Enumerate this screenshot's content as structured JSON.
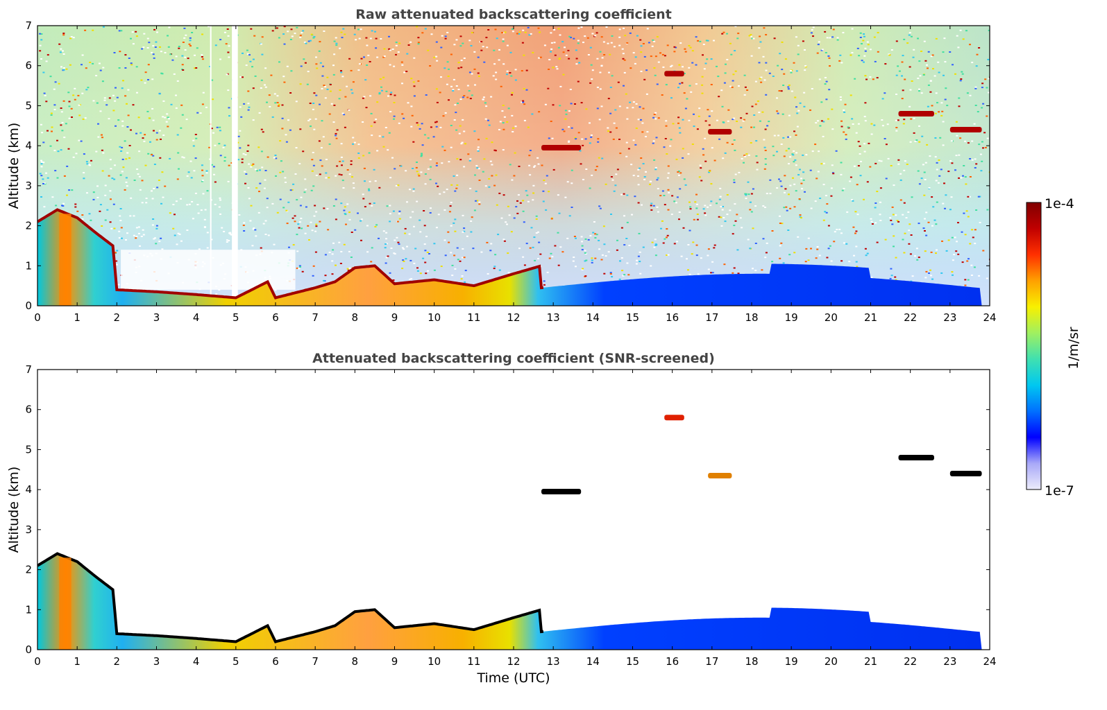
{
  "chart_data": [
    {
      "type": "heatmap",
      "title": "Raw attenuated backscattering coefficient",
      "xlabel": "",
      "ylabel": "Altitude (km)",
      "xlim": [
        0,
        24
      ],
      "ylim": [
        0,
        7
      ],
      "xticks": [
        "0",
        "1",
        "2",
        "3",
        "4",
        "5",
        "6",
        "7",
        "8",
        "9",
        "10",
        "11",
        "12",
        "13",
        "14",
        "15",
        "16",
        "17",
        "18",
        "19",
        "20",
        "21",
        "22",
        "23",
        "24"
      ],
      "yticks": [
        "0",
        "1",
        "2",
        "3",
        "4",
        "5",
        "6",
        "7"
      ],
      "boundary_layer_top_km": [
        {
          "x": 0,
          "y": 2.1
        },
        {
          "x": 0.5,
          "y": 2.4
        },
        {
          "x": 1.0,
          "y": 2.2
        },
        {
          "x": 1.5,
          "y": 1.8
        },
        {
          "x": 1.9,
          "y": 1.5
        },
        {
          "x": 2.0,
          "y": 0.4
        },
        {
          "x": 3.0,
          "y": 0.35
        },
        {
          "x": 4.0,
          "y": 0.28
        },
        {
          "x": 5.0,
          "y": 0.2
        },
        {
          "x": 5.8,
          "y": 0.6
        },
        {
          "x": 6.0,
          "y": 0.2
        },
        {
          "x": 7.0,
          "y": 0.45
        },
        {
          "x": 7.5,
          "y": 0.6
        },
        {
          "x": 8.0,
          "y": 0.95
        },
        {
          "x": 8.5,
          "y": 1.0
        },
        {
          "x": 9.0,
          "y": 0.55
        },
        {
          "x": 10.0,
          "y": 0.65
        },
        {
          "x": 11.0,
          "y": 0.5
        },
        {
          "x": 12.0,
          "y": 0.8
        },
        {
          "x": 12.7,
          "y": 1.0
        }
      ],
      "clouds_km": [
        {
          "x0": 12.7,
          "x1": 13.7,
          "y": 3.95
        },
        {
          "x0": 15.8,
          "x1": 16.3,
          "y": 5.8
        },
        {
          "x0": 16.9,
          "x1": 17.5,
          "y": 4.35
        },
        {
          "x0": 21.7,
          "x1": 22.6,
          "y": 4.8
        },
        {
          "x0": 23.0,
          "x1": 23.8,
          "y": 4.4
        }
      ]
    },
    {
      "type": "heatmap",
      "title": "Attenuated backscattering coefficient (SNR-screened)",
      "xlabel": "Time (UTC)",
      "ylabel": "Altitude (km)",
      "xlim": [
        0,
        24
      ],
      "ylim": [
        0,
        7
      ],
      "xticks": [
        "0",
        "1",
        "2",
        "3",
        "4",
        "5",
        "6",
        "7",
        "8",
        "9",
        "10",
        "11",
        "12",
        "13",
        "14",
        "15",
        "16",
        "17",
        "18",
        "19",
        "20",
        "21",
        "22",
        "23",
        "24"
      ],
      "yticks": [
        "0",
        "1",
        "2",
        "3",
        "4",
        "5",
        "6",
        "7"
      ]
    }
  ],
  "colorbar": {
    "label": "1/m/sr",
    "max_label": "1e-4",
    "min_label": "1e-7",
    "scale": "log",
    "colormap": [
      "#ececfb",
      "#a8a8f8",
      "#0000ff",
      "#0070ff",
      "#00c8f0",
      "#40e0b0",
      "#a0f060",
      "#f8f000",
      "#ffa000",
      "#ff3000",
      "#c00000",
      "#800000"
    ]
  }
}
